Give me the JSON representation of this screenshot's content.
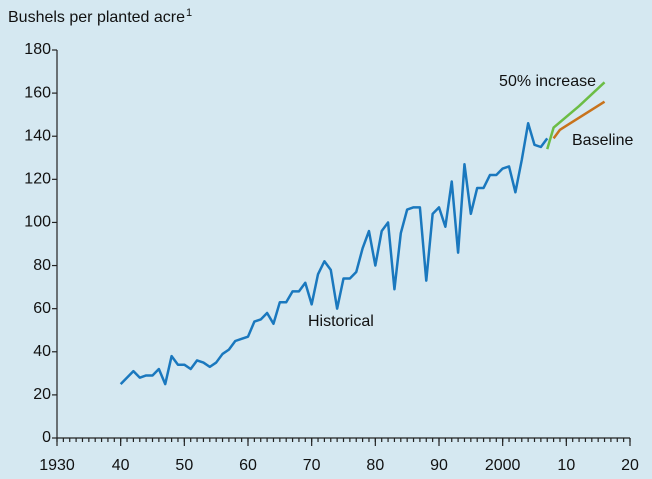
{
  "chart_data": {
    "type": "line",
    "subtitle": "Bushels per planted acre",
    "subtitle_sup": "1",
    "xlim": [
      1930,
      2020
    ],
    "xticks": [
      {
        "value": 1930,
        "label": "1930"
      },
      {
        "value": 1940,
        "label": "40"
      },
      {
        "value": 1950,
        "label": "50"
      },
      {
        "value": 1960,
        "label": "60"
      },
      {
        "value": 1970,
        "label": "70"
      },
      {
        "value": 1980,
        "label": "80"
      },
      {
        "value": 1990,
        "label": "90"
      },
      {
        "value": 2000,
        "label": "2000"
      },
      {
        "value": 2010,
        "label": "10"
      },
      {
        "value": 2020,
        "label": "20"
      }
    ],
    "ylim": [
      0,
      180
    ],
    "yticks": [
      0,
      20,
      40,
      60,
      80,
      100,
      120,
      140,
      160,
      180
    ],
    "series": [
      {
        "name": "Historical",
        "color": "#1a78be",
        "x": [
          1940,
          1941,
          1942,
          1943,
          1944,
          1945,
          1946,
          1947,
          1948,
          1949,
          1950,
          1951,
          1952,
          1953,
          1954,
          1955,
          1956,
          1957,
          1958,
          1959,
          1960,
          1961,
          1962,
          1963,
          1964,
          1965,
          1966,
          1967,
          1968,
          1969,
          1970,
          1971,
          1972,
          1973,
          1974,
          1975,
          1976,
          1977,
          1978,
          1979,
          1980,
          1981,
          1982,
          1983,
          1984,
          1985,
          1986,
          1987,
          1988,
          1989,
          1990,
          1991,
          1992,
          1993,
          1994,
          1995,
          1996,
          1997,
          1998,
          1999,
          2000,
          2001,
          2002,
          2003,
          2004,
          2005,
          2006,
          2007
        ],
        "values": [
          25,
          28,
          31,
          28,
          29,
          29,
          32,
          25,
          38,
          34,
          34,
          32,
          36,
          35,
          33,
          35,
          39,
          41,
          45,
          46,
          47,
          54,
          55,
          58,
          53,
          63,
          63,
          68,
          68,
          72,
          62,
          76,
          82,
          78,
          60,
          74,
          74,
          77,
          88,
          96,
          80,
          96,
          100,
          69,
          95,
          106,
          107,
          107,
          73,
          104,
          107,
          98,
          119,
          86,
          127,
          104,
          116,
          116,
          122,
          122,
          125,
          126,
          114,
          129,
          146,
          136,
          135,
          139
        ]
      },
      {
        "name": "50% increase",
        "color": "#6cbd45",
        "x": [
          2007,
          2008,
          2012,
          2016
        ],
        "values": [
          134,
          144,
          154,
          165
        ]
      },
      {
        "name": "Baseline",
        "color": "#c8731c",
        "x": [
          2008,
          2009,
          2016
        ],
        "values": [
          139,
          143,
          156
        ]
      }
    ]
  }
}
